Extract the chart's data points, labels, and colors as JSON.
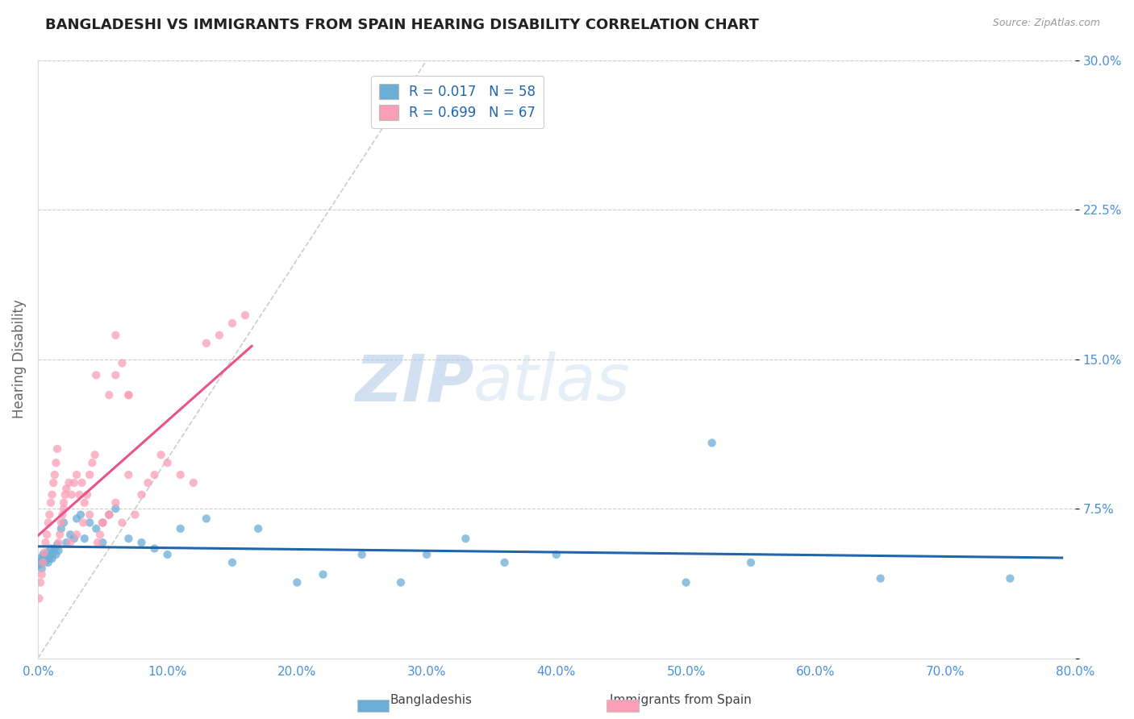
{
  "title": "BANGLADESHI VS IMMIGRANTS FROM SPAIN HEARING DISABILITY CORRELATION CHART",
  "source": "Source: ZipAtlas.com",
  "ylabel": "Hearing Disability",
  "xlim": [
    0,
    0.8
  ],
  "ylim": [
    0,
    0.3
  ],
  "xticks": [
    0.0,
    0.1,
    0.2,
    0.3,
    0.4,
    0.5,
    0.6,
    0.7,
    0.8
  ],
  "xticklabels": [
    "0.0%",
    "10.0%",
    "20.0%",
    "30.0%",
    "40.0%",
    "50.0%",
    "60.0%",
    "70.0%",
    "80.0%"
  ],
  "yticks": [
    0.0,
    0.075,
    0.15,
    0.225,
    0.3
  ],
  "yticklabels": [
    "",
    "7.5%",
    "15.0%",
    "22.5%",
    "30.0%"
  ],
  "color_blue": "#6baed6",
  "color_pink": "#fa9fb5",
  "color_trend_blue": "#2166ac",
  "color_trend_pink": "#e8538a",
  "R_blue": 0.017,
  "N_blue": 58,
  "R_pink": 0.699,
  "N_pink": 67,
  "legend_labels": [
    "Bangladeshis",
    "Immigrants from Spain"
  ],
  "watermark_zip": "ZIP",
  "watermark_atlas": "atlas",
  "background_color": "#ffffff",
  "grid_color": "#cccccc",
  "title_color": "#222222",
  "axis_label_color": "#666666",
  "tick_color": "#4a90d9",
  "blue_scatter_x": [
    0.001,
    0.002,
    0.002,
    0.003,
    0.003,
    0.004,
    0.004,
    0.005,
    0.005,
    0.006,
    0.006,
    0.007,
    0.007,
    0.008,
    0.008,
    0.009,
    0.01,
    0.01,
    0.011,
    0.012,
    0.013,
    0.014,
    0.015,
    0.016,
    0.018,
    0.02,
    0.022,
    0.025,
    0.028,
    0.03,
    0.033,
    0.036,
    0.04,
    0.045,
    0.05,
    0.055,
    0.06,
    0.07,
    0.08,
    0.09,
    0.1,
    0.11,
    0.13,
    0.15,
    0.17,
    0.2,
    0.22,
    0.25,
    0.28,
    0.3,
    0.33,
    0.36,
    0.4,
    0.5,
    0.55,
    0.65,
    0.75,
    0.52
  ],
  "blue_scatter_y": [
    0.047,
    0.048,
    0.05,
    0.045,
    0.049,
    0.05,
    0.052,
    0.048,
    0.051,
    0.049,
    0.052,
    0.05,
    0.053,
    0.048,
    0.051,
    0.05,
    0.052,
    0.055,
    0.05,
    0.053,
    0.055,
    0.052,
    0.057,
    0.054,
    0.065,
    0.068,
    0.058,
    0.062,
    0.06,
    0.07,
    0.072,
    0.06,
    0.068,
    0.065,
    0.058,
    0.072,
    0.075,
    0.06,
    0.058,
    0.055,
    0.052,
    0.065,
    0.07,
    0.048,
    0.065,
    0.038,
    0.042,
    0.052,
    0.038,
    0.052,
    0.06,
    0.048,
    0.052,
    0.038,
    0.048,
    0.04,
    0.04,
    0.108
  ],
  "pink_scatter_x": [
    0.001,
    0.002,
    0.003,
    0.004,
    0.005,
    0.006,
    0.007,
    0.008,
    0.009,
    0.01,
    0.011,
    0.012,
    0.013,
    0.014,
    0.015,
    0.016,
    0.017,
    0.018,
    0.019,
    0.02,
    0.021,
    0.022,
    0.024,
    0.026,
    0.028,
    0.03,
    0.032,
    0.034,
    0.036,
    0.038,
    0.04,
    0.042,
    0.044,
    0.046,
    0.048,
    0.05,
    0.055,
    0.06,
    0.065,
    0.07,
    0.075,
    0.08,
    0.085,
    0.09,
    0.095,
    0.1,
    0.11,
    0.12,
    0.13,
    0.14,
    0.15,
    0.16,
    0.05,
    0.055,
    0.06,
    0.065,
    0.07,
    0.045,
    0.05,
    0.055,
    0.02,
    0.025,
    0.03,
    0.035,
    0.04,
    0.06,
    0.07
  ],
  "pink_scatter_y": [
    0.03,
    0.038,
    0.042,
    0.048,
    0.053,
    0.058,
    0.062,
    0.068,
    0.072,
    0.078,
    0.082,
    0.088,
    0.092,
    0.098,
    0.105,
    0.058,
    0.062,
    0.068,
    0.072,
    0.078,
    0.082,
    0.085,
    0.088,
    0.082,
    0.088,
    0.092,
    0.082,
    0.088,
    0.078,
    0.082,
    0.092,
    0.098,
    0.102,
    0.058,
    0.062,
    0.068,
    0.132,
    0.142,
    0.148,
    0.132,
    0.072,
    0.082,
    0.088,
    0.092,
    0.102,
    0.098,
    0.092,
    0.088,
    0.158,
    0.162,
    0.168,
    0.172,
    0.068,
    0.072,
    0.078,
    0.068,
    0.132,
    0.142,
    0.068,
    0.072,
    0.075,
    0.058,
    0.062,
    0.068,
    0.072,
    0.162,
    0.092
  ]
}
